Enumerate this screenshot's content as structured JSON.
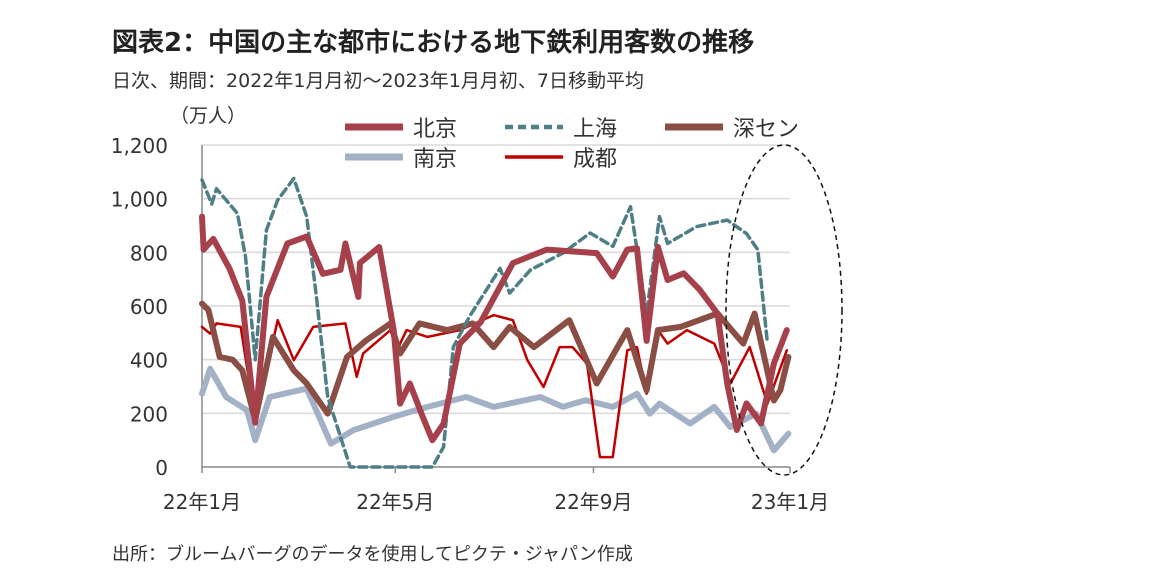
{
  "header": {
    "title": "図表2：中国の主な都市における地下鉄利用客数の推移",
    "subtitle": "日次、期間：2022年1月月初～2023年1月月初、7日移動平均"
  },
  "footer": {
    "source": "出所：ブルームバーグのデータを使用してピクテ・ジャパン作成"
  },
  "chart_data": {
    "type": "line",
    "title": "図表2：中国の主な都市における地下鉄利用客数の推移",
    "ylabel": "（万人）",
    "xlabel": "",
    "xlim": [
      "2022-01-01",
      "2023-01-01"
    ],
    "ylim": [
      0,
      1200
    ],
    "yticks": [
      0,
      200,
      400,
      600,
      800,
      1000,
      1200
    ],
    "ytick_labels": [
      "0",
      "200",
      "400",
      "600",
      "800",
      "1,000",
      "1,200"
    ],
    "xticks": [
      "2022-01-01",
      "2022-05-01",
      "2022-09-01",
      "2023-01-01"
    ],
    "xtick_labels": [
      "22年1月",
      "22年5月",
      "22年9月",
      "23年1月"
    ],
    "grid": "horizontal",
    "legend_placement": "top",
    "annotation": "dashed ellipse around December 2022",
    "series": [
      {
        "name": "北京",
        "color": "#A6404A",
        "style": "thick-solid",
        "points": [
          [
            "2022-01-01",
            933
          ],
          [
            "2022-01-02",
            810
          ],
          [
            "2022-01-08",
            850
          ],
          [
            "2022-01-18",
            740
          ],
          [
            "2022-01-26",
            620
          ],
          [
            "2022-02-03",
            165
          ],
          [
            "2022-02-10",
            634
          ],
          [
            "2022-02-23",
            833
          ],
          [
            "2022-03-07",
            859
          ],
          [
            "2022-03-17",
            720
          ],
          [
            "2022-03-28",
            735
          ],
          [
            "2022-03-31",
            833
          ],
          [
            "2022-04-08",
            634
          ],
          [
            "2022-04-09",
            760
          ],
          [
            "2022-04-21",
            820
          ],
          [
            "2022-04-30",
            510
          ],
          [
            "2022-05-04",
            236
          ],
          [
            "2022-05-10",
            311
          ],
          [
            "2022-05-18",
            187
          ],
          [
            "2022-05-24",
            100
          ],
          [
            "2022-05-31",
            162
          ],
          [
            "2022-06-10",
            460
          ],
          [
            "2022-06-23",
            540
          ],
          [
            "2022-07-13",
            760
          ],
          [
            "2022-08-03",
            810
          ],
          [
            "2022-09-03",
            797
          ],
          [
            "2022-09-13",
            710
          ],
          [
            "2022-09-22",
            810
          ],
          [
            "2022-09-28",
            815
          ],
          [
            "2022-10-04",
            470
          ],
          [
            "2022-10-11",
            820
          ],
          [
            "2022-10-17",
            697
          ],
          [
            "2022-10-27",
            722
          ],
          [
            "2022-11-06",
            660
          ],
          [
            "2022-11-17",
            572
          ],
          [
            "2022-11-23",
            310
          ],
          [
            "2022-11-29",
            138
          ],
          [
            "2022-12-05",
            237
          ],
          [
            "2022-12-14",
            162
          ],
          [
            "2022-12-22",
            386
          ],
          [
            "2022-12-30",
            510
          ]
        ]
      },
      {
        "name": "上海",
        "color": "#4F7F86",
        "style": "dashed",
        "points": [
          [
            "2022-01-01",
            1070
          ],
          [
            "2022-01-07",
            980
          ],
          [
            "2022-01-10",
            1037
          ],
          [
            "2022-01-23",
            945
          ],
          [
            "2022-01-28",
            784
          ],
          [
            "2022-02-03",
            400
          ],
          [
            "2022-02-10",
            883
          ],
          [
            "2022-02-17",
            995
          ],
          [
            "2022-02-27",
            1075
          ],
          [
            "2022-03-07",
            933
          ],
          [
            "2022-03-13",
            634
          ],
          [
            "2022-03-20",
            261
          ],
          [
            "2022-04-03",
            0
          ],
          [
            "2022-05-24",
            0
          ],
          [
            "2022-05-31",
            75
          ],
          [
            "2022-06-06",
            447
          ],
          [
            "2022-06-16",
            560
          ],
          [
            "2022-07-05",
            740
          ],
          [
            "2022-07-11",
            648
          ],
          [
            "2022-07-24",
            735
          ],
          [
            "2022-08-13",
            797
          ],
          [
            "2022-08-30",
            872
          ],
          [
            "2022-09-13",
            822
          ],
          [
            "2022-09-24",
            970
          ],
          [
            "2022-10-04",
            572
          ],
          [
            "2022-10-12",
            933
          ],
          [
            "2022-10-17",
            833
          ],
          [
            "2022-11-04",
            896
          ],
          [
            "2022-11-23",
            920
          ],
          [
            "2022-12-05",
            870
          ],
          [
            "2022-12-12",
            810
          ],
          [
            "2022-12-18",
            462
          ]
        ]
      },
      {
        "name": "深セン",
        "color": "#8A4E44",
        "style": "thick-solid",
        "points": [
          [
            "2022-01-01",
            609
          ],
          [
            "2022-01-05",
            585
          ],
          [
            "2022-01-12",
            410
          ],
          [
            "2022-01-20",
            400
          ],
          [
            "2022-01-26",
            360
          ],
          [
            "2022-02-03",
            175
          ],
          [
            "2022-02-14",
            485
          ],
          [
            "2022-02-27",
            360
          ],
          [
            "2022-03-07",
            311
          ],
          [
            "2022-03-20",
            199
          ],
          [
            "2022-04-01",
            410
          ],
          [
            "2022-04-13",
            472
          ],
          [
            "2022-04-28",
            535
          ],
          [
            "2022-05-04",
            423
          ],
          [
            "2022-05-16",
            535
          ],
          [
            "2022-06-02",
            510
          ],
          [
            "2022-06-18",
            535
          ],
          [
            "2022-07-01",
            447
          ],
          [
            "2022-07-11",
            522
          ],
          [
            "2022-07-26",
            447
          ],
          [
            "2022-08-17",
            547
          ],
          [
            "2022-09-03",
            311
          ],
          [
            "2022-09-22",
            510
          ],
          [
            "2022-10-04",
            286
          ],
          [
            "2022-10-11",
            510
          ],
          [
            "2022-10-25",
            522
          ],
          [
            "2022-11-17",
            572
          ],
          [
            "2022-12-03",
            460
          ],
          [
            "2022-12-10",
            572
          ],
          [
            "2022-12-22",
            248
          ],
          [
            "2022-12-26",
            286
          ],
          [
            "2022-12-31",
            410
          ]
        ]
      },
      {
        "name": "南京",
        "color": "#A3B1C6",
        "style": "thick-solid",
        "points": [
          [
            "2022-01-01",
            273
          ],
          [
            "2022-01-06",
            366
          ],
          [
            "2022-01-16",
            261
          ],
          [
            "2022-01-29",
            211
          ],
          [
            "2022-02-03",
            100
          ],
          [
            "2022-02-12",
            261
          ],
          [
            "2022-03-07",
            292
          ],
          [
            "2022-03-22",
            87
          ],
          [
            "2022-04-05",
            137
          ],
          [
            "2022-04-30",
            187
          ],
          [
            "2022-05-21",
            224
          ],
          [
            "2022-06-14",
            261
          ],
          [
            "2022-07-01",
            224
          ],
          [
            "2022-07-30",
            261
          ],
          [
            "2022-08-13",
            224
          ],
          [
            "2022-08-27",
            249
          ],
          [
            "2022-09-13",
            224
          ],
          [
            "2022-09-28",
            273
          ],
          [
            "2022-10-06",
            199
          ],
          [
            "2022-10-12",
            236
          ],
          [
            "2022-10-31",
            162
          ],
          [
            "2022-11-15",
            224
          ],
          [
            "2022-11-25",
            149
          ],
          [
            "2022-12-11",
            199
          ],
          [
            "2022-12-22",
            62
          ],
          [
            "2022-12-31",
            124
          ]
        ]
      },
      {
        "name": "成都",
        "color": "#C00000",
        "style": "thin-solid",
        "points": [
          [
            "2022-01-01",
            522
          ],
          [
            "2022-01-06",
            497
          ],
          [
            "2022-01-10",
            535
          ],
          [
            "2022-01-25",
            522
          ],
          [
            "2022-02-03",
            175
          ],
          [
            "2022-02-17",
            547
          ],
          [
            "2022-02-27",
            398
          ],
          [
            "2022-03-11",
            522
          ],
          [
            "2022-03-31",
            535
          ],
          [
            "2022-04-07",
            336
          ],
          [
            "2022-04-11",
            423
          ],
          [
            "2022-04-28",
            510
          ],
          [
            "2022-05-02",
            435
          ],
          [
            "2022-05-08",
            510
          ],
          [
            "2022-05-21",
            485
          ],
          [
            "2022-06-10",
            510
          ],
          [
            "2022-07-01",
            566
          ],
          [
            "2022-07-13",
            547
          ],
          [
            "2022-07-22",
            398
          ],
          [
            "2022-08-01",
            298
          ],
          [
            "2022-08-11",
            447
          ],
          [
            "2022-08-19",
            447
          ],
          [
            "2022-08-28",
            385
          ],
          [
            "2022-09-05",
            37
          ],
          [
            "2022-09-13",
            37
          ],
          [
            "2022-09-22",
            435
          ],
          [
            "2022-09-28",
            447
          ],
          [
            "2022-10-04",
            273
          ],
          [
            "2022-10-11",
            510
          ],
          [
            "2022-10-17",
            460
          ],
          [
            "2022-10-29",
            510
          ],
          [
            "2022-11-15",
            460
          ],
          [
            "2022-11-25",
            311
          ],
          [
            "2022-12-07",
            447
          ],
          [
            "2022-12-18",
            236
          ],
          [
            "2022-12-30",
            435
          ]
        ]
      }
    ]
  }
}
